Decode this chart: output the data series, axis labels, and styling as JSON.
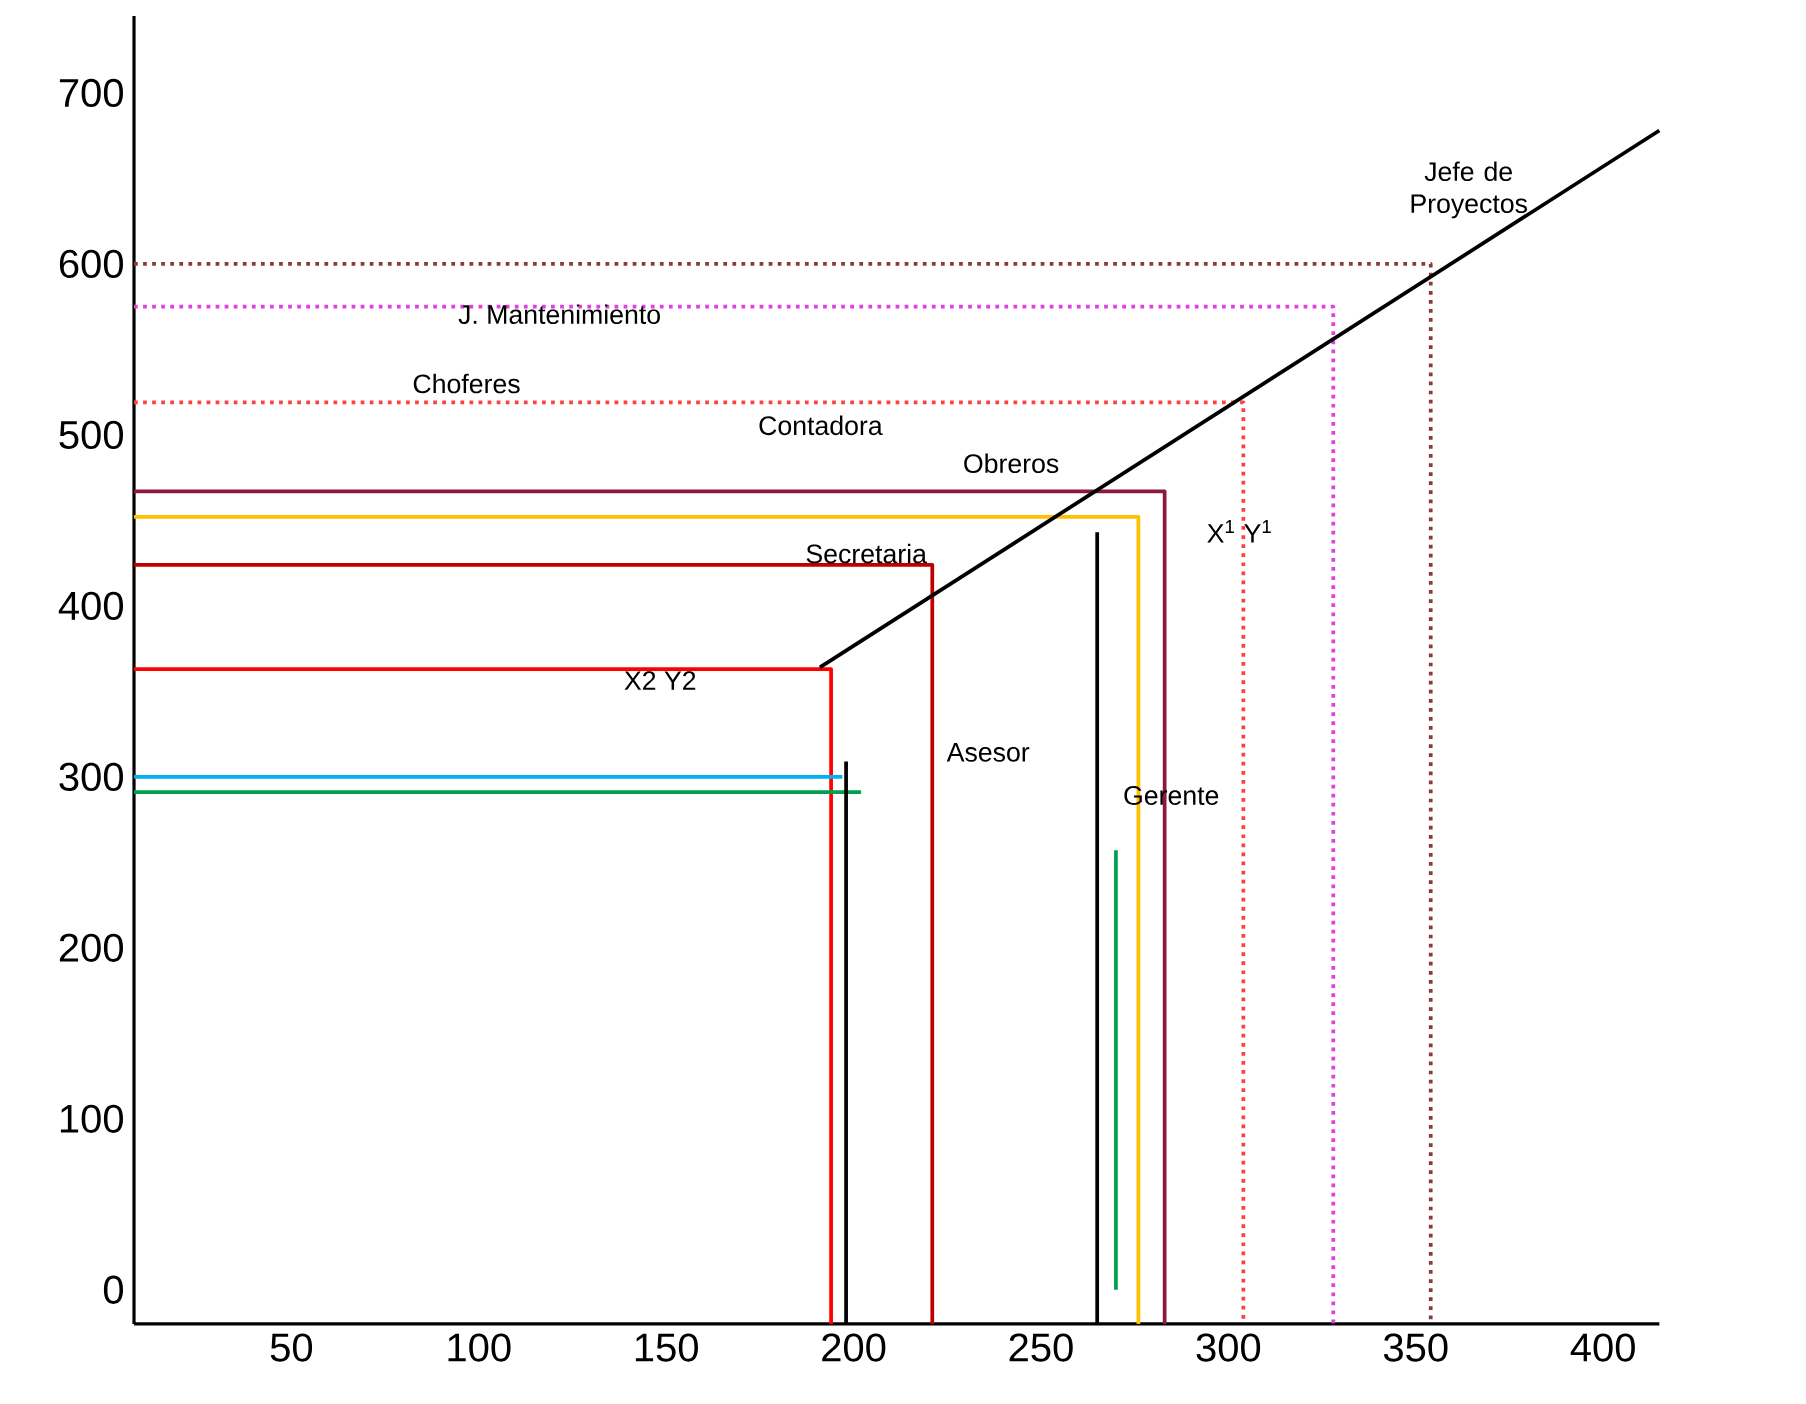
{
  "chart_data": {
    "type": "line",
    "xlim": [
      8,
      415
    ],
    "ylim": [
      -20,
      745
    ],
    "xticks": [
      50,
      100,
      150,
      200,
      250,
      300,
      350,
      400
    ],
    "yticks": [
      0,
      100,
      200,
      300,
      400,
      500,
      600,
      700
    ],
    "grid": false,
    "series": [
      {
        "color": "#8b3a3a",
        "line_style": "dotted",
        "x": [
          8,
          354,
          354
        ],
        "values": [
          600,
          600,
          -20
        ]
      },
      {
        "color": "#e040e0",
        "line_style": "dotted",
        "x": [
          8,
          328,
          328
        ],
        "values": [
          575,
          575,
          -20
        ]
      },
      {
        "color": "#ff4040",
        "line_style": "dotted",
        "x": [
          8,
          304,
          304
        ],
        "values": [
          519,
          519,
          -20
        ]
      },
      {
        "color": "#8b1a3a",
        "line_style": "solid",
        "x": [
          8,
          283,
          283
        ],
        "values": [
          467,
          467,
          -20
        ]
      },
      {
        "color": "#ffc000",
        "line_style": "solid",
        "x": [
          8,
          276,
          276
        ],
        "values": [
          452,
          452,
          -20
        ]
      },
      {
        "color": "#c00000",
        "line_style": "solid",
        "x": [
          8,
          221,
          221
        ],
        "values": [
          424,
          424,
          -20
        ]
      },
      {
        "color": "#ff0000",
        "line_style": "solid",
        "x": [
          8,
          194,
          194
        ],
        "values": [
          363,
          363,
          -20
        ]
      },
      {
        "color": "#00b0f0",
        "line_style": "solid",
        "x": [
          8,
          197
        ],
        "values": [
          300,
          300
        ]
      },
      {
        "color": "#00a050",
        "line_style": "solid",
        "x": [
          8,
          202
        ],
        "values": [
          291,
          291
        ]
      },
      {
        "color": "#00a050",
        "line_style": "solid",
        "x": [
          270,
          270
        ],
        "values": [
          257,
          0
        ]
      },
      {
        "color": "#000000",
        "line_style": "solid",
        "x": [
          198,
          198
        ],
        "values": [
          309,
          -20
        ]
      },
      {
        "color": "#000000",
        "line_style": "solid",
        "x": [
          265,
          265
        ],
        "values": [
          443,
          -20
        ]
      },
      {
        "color": "#000000",
        "line_style": "solid",
        "x": [
          191,
          415
        ],
        "values": [
          364,
          678
        ]
      }
    ],
    "annotations": [
      "Jefe de Proyectos",
      "J. Mantenimiento",
      "Choferes",
      "Contadora",
      "Obreros",
      "Secretaria",
      "Asesor",
      "Gerente",
      "X2   Y2",
      "X$^{1}$   Y$^{1}$"
    ]
  }
}
